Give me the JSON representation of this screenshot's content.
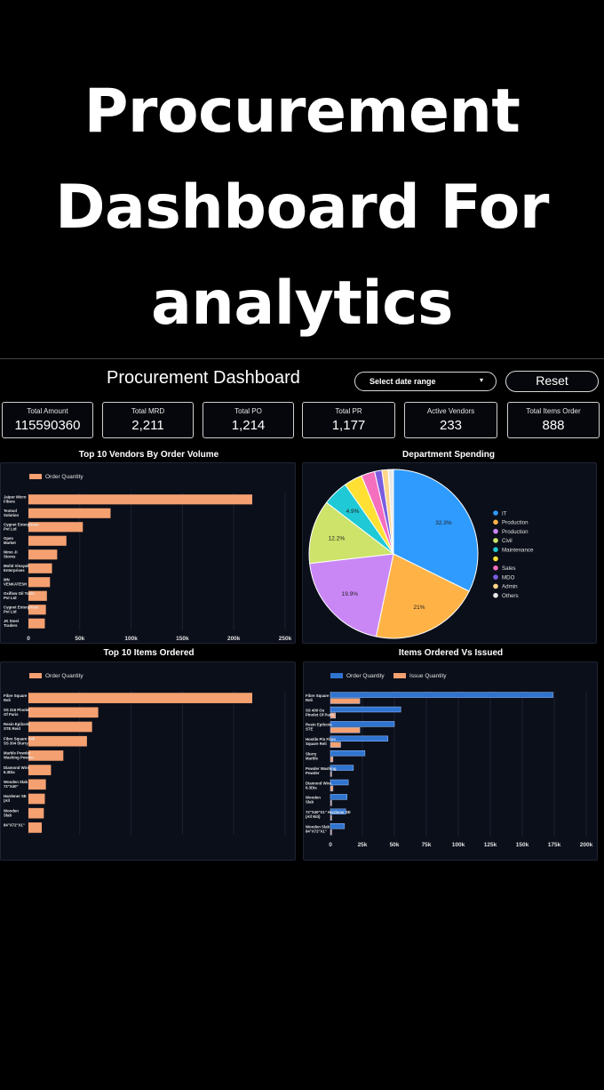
{
  "headline": [
    "Procurement",
    "Dashboard For",
    "analytics"
  ],
  "dashboard": {
    "title": "Procurement  Dashboard",
    "date_range_label": "Select date range",
    "reset_label": "Reset"
  },
  "kpis": [
    {
      "label": "Total Amount",
      "value": "115590360"
    },
    {
      "label": "Total MRD",
      "value": "2,211"
    },
    {
      "label": "Total PO",
      "value": "1,214"
    },
    {
      "label": "Total PR",
      "value": "1,177"
    },
    {
      "label": "Active Vendors",
      "value": "233"
    },
    {
      "label": "Total Items Order",
      "value": "888"
    }
  ],
  "colors": {
    "order": "#f4a070",
    "issue": "#f4a070",
    "order_blue": "#2f74d0",
    "grid": "#1c2231",
    "panel": "#0b0f1a"
  },
  "chart_data": [
    {
      "type": "bar",
      "orientation": "horizontal",
      "title": "Top 10 Vendors By Order Volume",
      "categories": [
        "Jaipur Micro Fibers",
        "Textool Solution",
        "Cygnet Enterprises Pvt Ltd",
        "Open Market",
        "Nimo JI Stores",
        "Mohit Vinayak Enterprises",
        "MN VENKATESH",
        "Oxiflow Oil Tools Pvt Ltd",
        "Cygnet Enterprises Pvt Ltd",
        "JK Steel Traders"
      ],
      "series": [
        {
          "name": "Order Quantity",
          "values": [
            218000,
            80000,
            53000,
            37000,
            28000,
            23000,
            21000,
            18000,
            17000,
            16000
          ]
        }
      ],
      "x_ticks": [
        "0",
        "50k",
        "100k",
        "150k",
        "200k",
        "250k"
      ],
      "xlim": [
        0,
        250000
      ]
    },
    {
      "type": "pie",
      "title": "Department Spending",
      "labels": [
        "IT",
        "Production",
        "Production",
        "Civil",
        "Maintenance",
        "",
        "Sales",
        "MDO",
        "Admin",
        "Others"
      ],
      "values": [
        32.3,
        21,
        19.9,
        12.2,
        4.9,
        3.5,
        2.6,
        1.4,
        1.2,
        1.0
      ],
      "value_labels": [
        "32.3%",
        "21%",
        "19.9%",
        "12.2%",
        "4.9%",
        "",
        "",
        "",
        "",
        ""
      ],
      "colors": [
        "#2f9bff",
        "#ffb347",
        "#c987f5",
        "#cde36a",
        "#1fc9d6",
        "#ffe033",
        "#f56fbf",
        "#7a5ce0",
        "#ffd58a",
        "#e8e8e8"
      ],
      "legend_position": "right"
    },
    {
      "type": "bar",
      "orientation": "horizontal",
      "title": "Top 10 Items Ordered",
      "categories": [
        "Fibre Square Reli",
        "SS 316 Pinolet Of Paris",
        "Resin Epilcote STE Reid",
        "Fibre Square Reli SS 304 Slurry",
        "Marble Powder Washing Powder",
        "Diamond Wire 6.3Dia",
        "Wooden Slab 72\"X40\"",
        "Hardener SE (All",
        "Wooden Slab",
        "84\"X72\"X1\""
      ],
      "series": [
        {
          "name": "Order Quantity",
          "values": [
            218000,
            68000,
            62000,
            57000,
            34000,
            22000,
            17000,
            16000,
            15000,
            13000
          ]
        }
      ],
      "xlim": [
        0,
        250000
      ]
    },
    {
      "type": "bar",
      "orientation": "horizontal",
      "title": "Items Ordered Vs Issued",
      "categories": [
        "Fibre Square Reli",
        "SS 400 Ou Pinolet Of Paris",
        "Resin Epilcote STE",
        "Hostile Pin Fibre Square Reli",
        "Slurry Marble",
        "Powder Washing Powder",
        "Diamond Wire 6.3Dia",
        "Wooden Slab",
        "72\"X40\"X1\" Hardener SE (All Niti)",
        "Wooden Slab 84\"X72\"X1\""
      ],
      "series": [
        {
          "name": "Order Quantity",
          "values": [
            174000,
            55000,
            50000,
            45000,
            27000,
            18000,
            14000,
            13000,
            12000,
            11000
          ]
        },
        {
          "name": "Issue Quantity",
          "values": [
            23000,
            4000,
            23000,
            8000,
            2000,
            1000,
            2000,
            1000,
            1000,
            1000
          ]
        }
      ],
      "x_ticks": [
        "0",
        "25k",
        "50k",
        "75k",
        "100k",
        "125k",
        "150k",
        "175k",
        "200k"
      ],
      "xlim": [
        0,
        200000
      ]
    }
  ]
}
